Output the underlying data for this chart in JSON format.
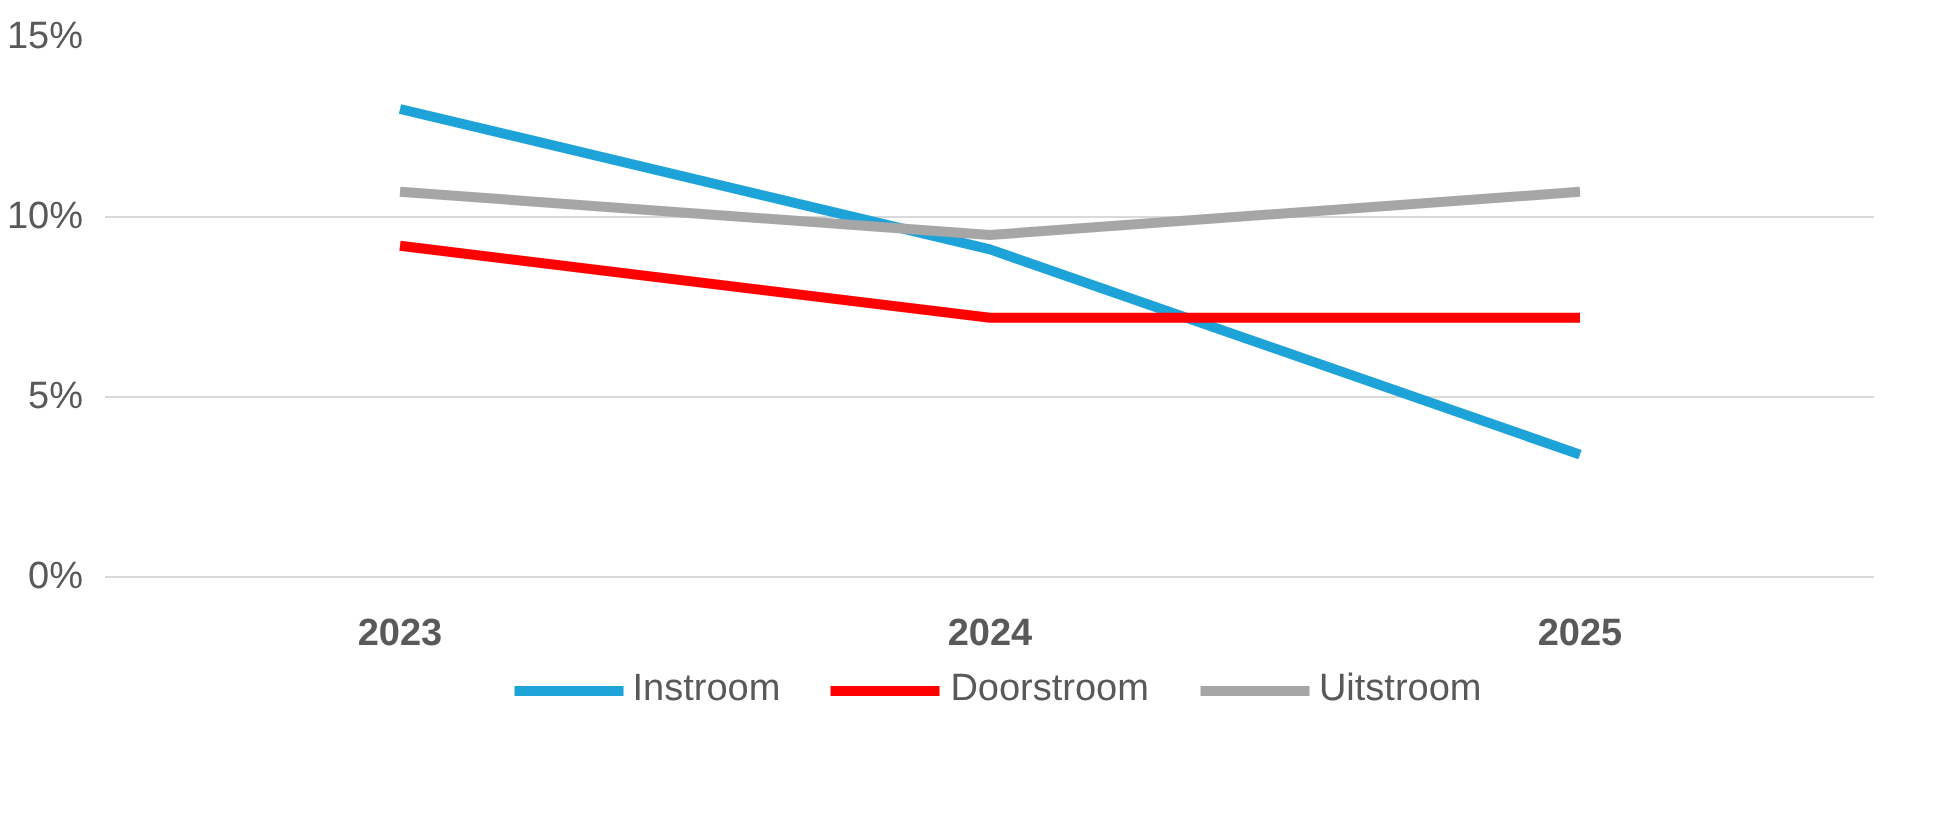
{
  "chart_data": {
    "type": "line",
    "categories": [
      "2023",
      "2024",
      "2025"
    ],
    "series": [
      {
        "name": "Instroom",
        "color": "#1ea3d8",
        "values": [
          13.0,
          9.1,
          3.4
        ]
      },
      {
        "name": "Doorstroom",
        "color": "#ff0000",
        "values": [
          9.2,
          7.2,
          7.2
        ]
      },
      {
        "name": "Uitstroom",
        "color": "#a6a6a6",
        "values": [
          10.7,
          9.5,
          10.7
        ]
      }
    ],
    "ylim": [
      0,
      15
    ],
    "yticks": [
      {
        "value": 0,
        "label": "0%"
      },
      {
        "value": 5,
        "label": "5%"
      },
      {
        "value": 10,
        "label": "10%"
      },
      {
        "value": 15,
        "label": "15%"
      }
    ],
    "grid": "y",
    "legend": "bottom",
    "marker": "none",
    "line_style": "solid"
  }
}
